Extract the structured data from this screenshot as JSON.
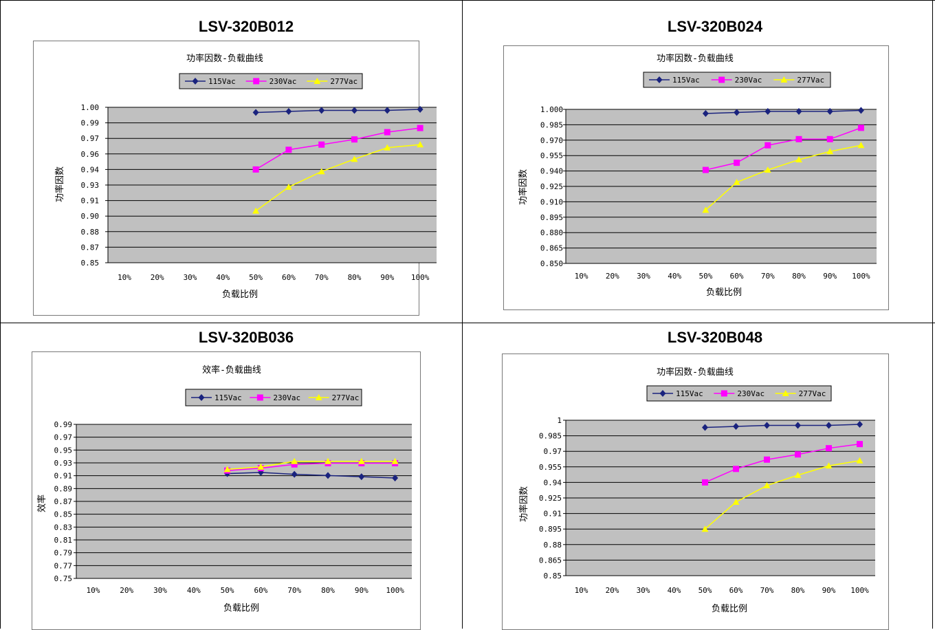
{
  "headers": [
    "LSV-320B012",
    "LSV-320B024",
    "LSV-320B036",
    "LSV-320B048"
  ],
  "colors": {
    "s115": "#1a237e",
    "s230": "#ff00ff",
    "s277": "#ffff00",
    "plot_bg": "#c0c0c0",
    "legend_bg": "#c0c0c0"
  },
  "chart_data": [
    {
      "type": "line",
      "title": "功率因数-负载曲线",
      "xlabel": "负载比例",
      "ylabel": "功率因数",
      "categories": [
        "10%",
        "20%",
        "30%",
        "40%",
        "50%",
        "60%",
        "70%",
        "80%",
        "90%",
        "100%"
      ],
      "y_ticks": [
        "0.85",
        "0.87",
        "0.88",
        "0.90",
        "0.91",
        "0.93",
        "0.94",
        "0.96",
        "0.97",
        "0.99",
        "1.00"
      ],
      "ylim": [
        0.85,
        1.0
      ],
      "grid": true,
      "legend": "top-center",
      "series": [
        {
          "name": "115Vac",
          "values": [
            null,
            null,
            null,
            null,
            0.995,
            0.996,
            0.997,
            0.997,
            0.997,
            0.998
          ]
        },
        {
          "name": "230Vac",
          "values": [
            null,
            null,
            null,
            null,
            0.94,
            0.959,
            0.964,
            0.969,
            0.976,
            0.98
          ]
        },
        {
          "name": "277Vac",
          "values": [
            null,
            null,
            null,
            null,
            0.9,
            0.923,
            0.938,
            0.95,
            0.961,
            0.964
          ]
        }
      ]
    },
    {
      "type": "line",
      "title": "功率因数-负载曲线",
      "xlabel": "负载比例",
      "ylabel": "功率因数",
      "categories": [
        "10%",
        "20%",
        "30%",
        "40%",
        "50%",
        "60%",
        "70%",
        "80%",
        "90%",
        "100%"
      ],
      "y_ticks": [
        "0.850",
        "0.865",
        "0.880",
        "0.895",
        "0.910",
        "0.925",
        "0.940",
        "0.955",
        "0.970",
        "0.985",
        "1.000"
      ],
      "ylim": [
        0.85,
        1.0
      ],
      "grid": true,
      "legend": "top-center",
      "series": [
        {
          "name": "115Vac",
          "values": [
            null,
            null,
            null,
            null,
            0.996,
            0.997,
            0.998,
            0.998,
            0.998,
            0.999
          ]
        },
        {
          "name": "230Vac",
          "values": [
            null,
            null,
            null,
            null,
            0.941,
            0.948,
            0.965,
            0.971,
            0.971,
            0.982
          ]
        },
        {
          "name": "277Vac",
          "values": [
            null,
            null,
            null,
            null,
            0.902,
            0.929,
            0.941,
            0.951,
            0.959,
            0.965
          ]
        }
      ]
    },
    {
      "type": "line",
      "title": "效率-负载曲线",
      "xlabel": "负载比例",
      "ylabel": "效率",
      "categories": [
        "10%",
        "20%",
        "30%",
        "40%",
        "50%",
        "60%",
        "70%",
        "80%",
        "90%",
        "100%"
      ],
      "y_ticks": [
        "0.75",
        "0.77",
        "0.79",
        "0.81",
        "0.83",
        "0.85",
        "0.87",
        "0.89",
        "0.91",
        "0.93",
        "0.95",
        "0.97",
        "0.99"
      ],
      "ylim": [
        0.75,
        1.0
      ],
      "grid": true,
      "legend": "top-center",
      "series": [
        {
          "name": "115Vac",
          "values": [
            null,
            null,
            null,
            null,
            0.92,
            0.922,
            0.919,
            0.917,
            0.915,
            0.913
          ]
        },
        {
          "name": "230Vac",
          "values": [
            null,
            null,
            null,
            null,
            0.925,
            0.929,
            0.935,
            0.937,
            0.937,
            0.937
          ]
        },
        {
          "name": "277Vac",
          "values": [
            null,
            null,
            null,
            null,
            0.927,
            0.931,
            0.94,
            0.94,
            0.94,
            0.94
          ]
        }
      ]
    },
    {
      "type": "line",
      "title": "功率因数-负载曲线",
      "xlabel": "负载比例",
      "ylabel": "功率因数",
      "categories": [
        "10%",
        "20%",
        "30%",
        "40%",
        "50%",
        "60%",
        "70%",
        "80%",
        "90%",
        "100%"
      ],
      "y_ticks": [
        "0.85",
        "0.865",
        "0.88",
        "0.895",
        "0.91",
        "0.925",
        "0.94",
        "0.955",
        "0.97",
        "0.985",
        "1"
      ],
      "ylim": [
        0.85,
        1.0
      ],
      "grid": true,
      "legend": "top-center",
      "series": [
        {
          "name": "115Vac",
          "values": [
            null,
            null,
            null,
            null,
            0.993,
            0.994,
            0.995,
            0.995,
            0.995,
            0.996
          ]
        },
        {
          "name": "230Vac",
          "values": [
            null,
            null,
            null,
            null,
            0.94,
            0.953,
            0.962,
            0.967,
            0.973,
            0.977
          ]
        },
        {
          "name": "277Vac",
          "values": [
            null,
            null,
            null,
            null,
            0.895,
            0.921,
            0.937,
            0.947,
            0.956,
            0.961
          ]
        }
      ]
    }
  ]
}
